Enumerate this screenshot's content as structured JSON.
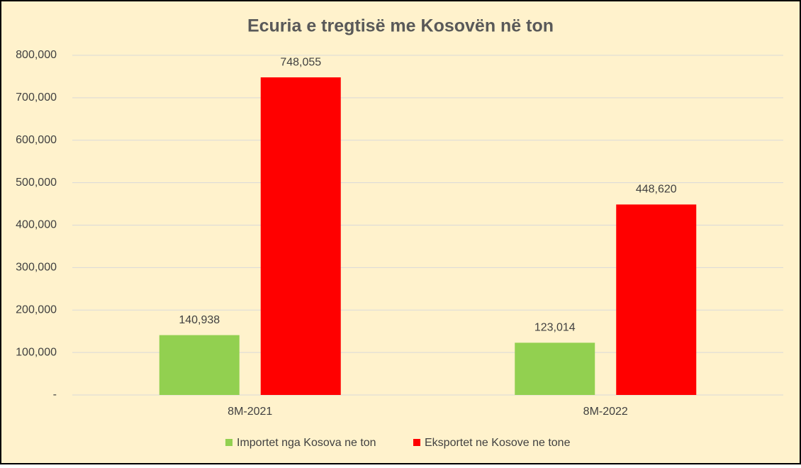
{
  "chart_data": {
    "type": "bar",
    "title": "Ecuria e tregtisë me Kosovën në ton",
    "categories": [
      "8M-2021",
      "8M-2022"
    ],
    "series": [
      {
        "name": "Importet nga Kosova ne ton",
        "color": "#92d050",
        "values": [
          140938,
          123014
        ],
        "value_labels": [
          "140,938",
          "123,014"
        ]
      },
      {
        "name": "Eksportet ne Kosove ne tone",
        "color": "#ff0000",
        "values": [
          748055,
          448620
        ],
        "value_labels": [
          "748,055",
          "448,620"
        ]
      }
    ],
    "ylim": [
      0,
      800000
    ],
    "yticks": [
      {
        "value": 0,
        "label": "-"
      },
      {
        "value": 100000,
        "label": "100,000"
      },
      {
        "value": 200000,
        "label": "200,000"
      },
      {
        "value": 300000,
        "label": "300,000"
      },
      {
        "value": 400000,
        "label": "400,000"
      },
      {
        "value": 500000,
        "label": "500,000"
      },
      {
        "value": 600000,
        "label": "600,000"
      },
      {
        "value": 700000,
        "label": "700,000"
      },
      {
        "value": 800000,
        "label": "800,000"
      }
    ],
    "grid": true,
    "legend": "bottom"
  }
}
